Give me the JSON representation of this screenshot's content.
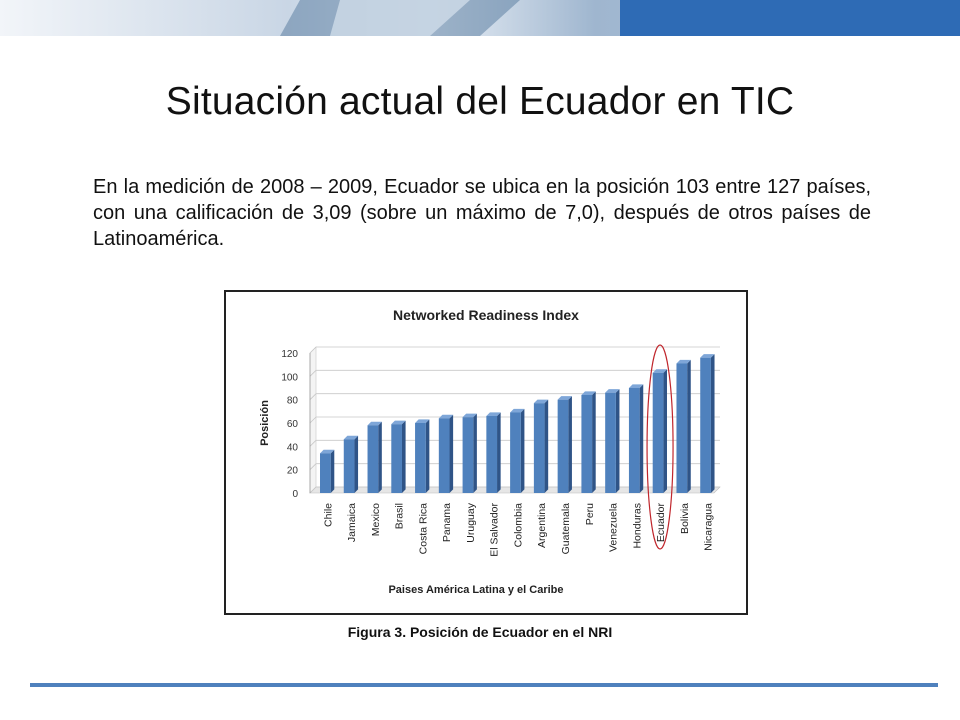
{
  "slide": {
    "title": "Situación actual del Ecuador en TIC",
    "body": "En la medición de 2008 – 2009, Ecuador se ubica en la posición 103 entre 127 países, con una calificación de 3,09 (sobre un máximo de 7,0), después de otros países de Latinoamérica.",
    "caption": "Figura 3. Posición de Ecuador en el NRI"
  },
  "colors": {
    "bar": "#4f81bd",
    "bar_dark": "#2f5487",
    "highlight": "#c0262c",
    "banner_left": "#c6d5e6",
    "banner_right": "#2e6bb5",
    "rule": "#4f81bd"
  },
  "chart_data": {
    "type": "bar",
    "title": "Networked Readiness Index",
    "xlabel": "Paises América Latina y el Caribe",
    "ylabel": "Posición",
    "ylim": [
      0,
      120
    ],
    "yticks": [
      0,
      20,
      40,
      60,
      80,
      100,
      120
    ],
    "grid": true,
    "categories": [
      "Chile",
      "Jamaica",
      "Mexico",
      "Brasil",
      "Costa Rica",
      "Panama",
      "Uruguay",
      "El Salvador",
      "Colombia",
      "Argentina",
      "Guatemala",
      "Peru",
      "Venezuela",
      "Honduras",
      "Ecuador",
      "Bolivia",
      "Nicaragua"
    ],
    "values": [
      34,
      46,
      58,
      59,
      60,
      64,
      65,
      66,
      69,
      77,
      80,
      84,
      86,
      90,
      103,
      111,
      116
    ],
    "highlighted_category": "Ecuador"
  }
}
